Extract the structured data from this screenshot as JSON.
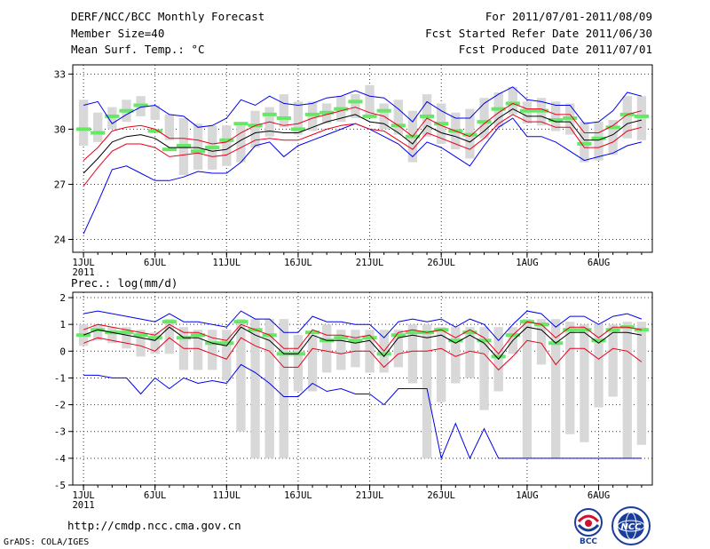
{
  "header": {
    "title": "DERF/NCC/BCC Monthly Forecast",
    "member": "Member Size=40",
    "variable": "Mean Surf. Temp.: °C",
    "period": "For 2011/07/01-2011/08/09",
    "refer": "Fcst Started Refer Date 2011/06/30",
    "produced": "Fcst Produced Date 2011/07/01"
  },
  "footer": {
    "url": "http://cmdp.ncc.cma.gov.cn",
    "credit": "GrADS: COLA/IGES",
    "logo_bcc": "BCC",
    "logo_ncc": "NCC"
  },
  "colors": {
    "box": "#d8d8d8",
    "mean": "#66e866",
    "median": "#000000",
    "inner": "#e8001c",
    "outer": "#0000ee",
    "grid": "#333333"
  },
  "chart_data": [
    {
      "type": "box-line",
      "title": "Mean Surf. Temp.: °C",
      "ylabel": "Mean Surf. Temp. (°C)",
      "ylim": [
        23.3,
        33.5
      ],
      "yticks": [
        24,
        27,
        30,
        33
      ],
      "xtick_days": [
        1,
        6,
        11,
        16,
        21,
        26,
        32,
        37
      ],
      "xtick_labels": [
        "1JUL",
        "6JUL",
        "11JUL",
        "16JUL",
        "21JUL",
        "26JUL",
        "1AUG",
        "6AUG"
      ],
      "year_label": "2011",
      "days": 40,
      "box_low": [
        29.1,
        29.3,
        30.0,
        30.4,
        30.7,
        30.5,
        29.4,
        27.5,
        27.8,
        27.8,
        28.0,
        28.2,
        29.0,
        29.6,
        30.1,
        29.7,
        29.9,
        30.3,
        30.4,
        30.6,
        30.7,
        30.0,
        29.7,
        28.2,
        29.6,
        29.2,
        28.9,
        28.4,
        29.5,
        30.1,
        30.8,
        30.3,
        30.2,
        29.9,
        29.7,
        28.2,
        28.3,
        28.6,
        29.5,
        29.4
      ],
      "box_high": [
        31.6,
        30.9,
        31.2,
        31.6,
        31.8,
        31.3,
        30.8,
        30.6,
        30.3,
        30.2,
        30.2,
        30.2,
        31.0,
        31.2,
        31.9,
        31.5,
        31.5,
        31.4,
        31.8,
        31.9,
        32.4,
        31.4,
        31.6,
        31.0,
        31.9,
        31.4,
        30.9,
        31.1,
        31.7,
        32.0,
        32.3,
        31.5,
        31.7,
        31.5,
        31.4,
        30.4,
        30.4,
        30.5,
        31.8,
        31.8
      ],
      "mean": [
        30.0,
        29.8,
        30.7,
        31.0,
        31.3,
        29.9,
        28.9,
        29.1,
        28.8,
        29.0,
        29.4,
        30.3,
        30.2,
        30.8,
        30.6,
        30.0,
        30.8,
        30.9,
        31.1,
        31.5,
        30.7,
        31.0,
        30.2,
        29.6,
        30.7,
        30.3,
        29.9,
        29.7,
        30.4,
        31.1,
        31.4,
        31.0,
        31.0,
        30.5,
        30.6,
        29.2,
        29.5,
        30.1,
        30.8,
        30.7
      ],
      "series": [
        {
          "name": "max",
          "color": "outer",
          "values": [
            24.3,
            26.0,
            27.8,
            28.0,
            27.6,
            27.2,
            27.2,
            27.4,
            27.7,
            27.6,
            27.6,
            28.2,
            29.1,
            29.3,
            28.5,
            29.1,
            29.4,
            29.7,
            30.0,
            30.3,
            30.0,
            29.6,
            29.2,
            28.5,
            29.3,
            29.0,
            28.5,
            28.0,
            29.1,
            30.1,
            30.6,
            29.6,
            29.6,
            29.3,
            28.8,
            28.3,
            28.5,
            28.7,
            29.1,
            29.3
          ]
        },
        {
          "name": "",
          "color": "inner",
          "values": [
            26.9,
            27.9,
            28.8,
            29.2,
            29.2,
            29.0,
            28.5,
            28.6,
            28.7,
            28.5,
            28.6,
            29.0,
            29.4,
            29.5,
            29.4,
            29.4,
            29.7,
            30.0,
            30.2,
            30.3,
            30.0,
            29.9,
            29.4,
            28.9,
            29.8,
            29.5,
            29.2,
            28.9,
            29.5,
            30.3,
            30.8,
            30.4,
            30.4,
            30.1,
            30.1,
            29.0,
            29.0,
            29.3,
            29.9,
            30.1
          ]
        },
        {
          "name": "",
          "color": "median",
          "values": [
            27.6,
            28.4,
            29.3,
            29.6,
            29.7,
            29.5,
            29.0,
            29.0,
            29.0,
            28.8,
            28.9,
            29.4,
            29.8,
            29.9,
            29.8,
            29.8,
            30.1,
            30.4,
            30.6,
            30.8,
            30.4,
            30.3,
            29.8,
            29.2,
            30.2,
            29.8,
            29.6,
            29.3,
            29.9,
            30.6,
            31.1,
            30.7,
            30.7,
            30.4,
            30.4,
            29.4,
            29.4,
            29.7,
            30.3,
            30.5
          ]
        },
        {
          "name": "",
          "color": "inner",
          "values": [
            28.3,
            29.0,
            29.9,
            30.1,
            30.2,
            30.0,
            29.5,
            29.5,
            29.4,
            29.2,
            29.3,
            29.8,
            30.2,
            30.4,
            30.2,
            30.3,
            30.6,
            30.8,
            31.0,
            31.2,
            30.9,
            30.7,
            30.2,
            29.6,
            30.6,
            30.2,
            29.9,
            29.6,
            30.3,
            30.9,
            31.4,
            31.1,
            31.1,
            30.8,
            30.8,
            29.8,
            29.8,
            30.2,
            30.8,
            31.0
          ]
        },
        {
          "name": "min",
          "color": "outer",
          "values": [
            31.3,
            31.5,
            30.3,
            30.8,
            31.2,
            31.3,
            30.8,
            30.7,
            30.1,
            30.2,
            30.6,
            31.6,
            31.3,
            31.8,
            31.4,
            31.3,
            31.4,
            31.7,
            31.8,
            32.1,
            31.8,
            31.7,
            31.1,
            30.4,
            31.5,
            31.0,
            30.6,
            30.6,
            31.4,
            31.9,
            32.3,
            31.6,
            31.5,
            31.3,
            31.3,
            30.3,
            30.4,
            31.0,
            32.0,
            31.8
          ]
        }
      ]
    },
    {
      "type": "box-line",
      "title": "Prec.: log(mm/d)",
      "ylabel": "Prec. log(mm/d)",
      "ylim": [
        -5,
        2.2
      ],
      "yticks": [
        -5,
        -4,
        -3,
        -2,
        -1,
        0,
        1,
        2
      ],
      "xtick_days": [
        1,
        6,
        11,
        16,
        21,
        26,
        32,
        37
      ],
      "xtick_labels": [
        "1JUL",
        "6JUL",
        "11JUL",
        "16JUL",
        "21JUL",
        "26JUL",
        "1AUG",
        "6AUG"
      ],
      "year_label": "2011",
      "days": 40,
      "box_low": [
        0.2,
        0.4,
        0.3,
        0.1,
        -0.2,
        -0.1,
        -0.1,
        -0.7,
        -0.7,
        -0.7,
        -1.1,
        -3.0,
        -4.0,
        -4.0,
        -4.0,
        -1.5,
        -1.5,
        -0.8,
        -0.7,
        -0.6,
        -0.8,
        -0.8,
        -0.6,
        -1.2,
        -4.0,
        -1.9,
        -1.2,
        -1.0,
        -2.2,
        -1.5,
        -0.1,
        -4.0,
        -0.5,
        -4.0,
        -3.1,
        -3.4,
        -2.1,
        -1.7,
        -4.0,
        -3.5
      ],
      "box_high": [
        1.0,
        1.0,
        0.9,
        0.9,
        0.8,
        0.7,
        1.2,
        0.9,
        0.8,
        0.8,
        0.8,
        1.2,
        1.2,
        1.2,
        1.2,
        0.6,
        0.6,
        1.0,
        0.8,
        0.8,
        0.8,
        0.8,
        0.8,
        1.0,
        1.0,
        0.9,
        0.9,
        0.9,
        0.9,
        0.9,
        0.9,
        1.2,
        1.2,
        1.2,
        1.1,
        1.0,
        1.0,
        1.0,
        1.1,
        1.1
      ],
      "mean": [
        0.6,
        0.8,
        0.7,
        0.7,
        0.6,
        0.5,
        1.1,
        0.5,
        0.6,
        0.3,
        0.3,
        1.1,
        0.8,
        0.6,
        -0.1,
        -0.1,
        0.7,
        0.4,
        0.5,
        0.4,
        0.5,
        -0.1,
        0.6,
        0.7,
        0.7,
        0.8,
        0.4,
        0.7,
        0.4,
        -0.2,
        0.6,
        1.1,
        1.0,
        0.3,
        0.8,
        0.8,
        0.4,
        0.8,
        0.9,
        0.8
      ],
      "series": [
        {
          "name": "max",
          "color": "outer",
          "values": [
            -0.9,
            -0.9,
            -1.0,
            -1.0,
            -1.6,
            -1.0,
            -1.4,
            -1.0,
            -1.2,
            -1.1,
            -1.2,
            -0.5,
            -0.8,
            -1.2,
            -1.7,
            -1.7,
            -1.2,
            -1.5,
            -1.4,
            -1.6,
            -1.6,
            -2.0,
            -1.4,
            -1.4,
            -1.4,
            -4.0,
            -2.7,
            -4.0,
            -2.9,
            -4.0,
            -4.0,
            -4.0,
            -4.0,
            -4.0,
            -4.0,
            -4.0,
            -4.0,
            -4.0,
            -4.0,
            -4.0
          ]
        },
        {
          "name": "",
          "color": "inner",
          "values": [
            0.3,
            0.5,
            0.4,
            0.3,
            0.2,
            0.0,
            0.5,
            0.1,
            0.1,
            -0.1,
            -0.3,
            0.5,
            0.2,
            0.0,
            -0.6,
            -0.6,
            0.1,
            0.0,
            -0.1,
            0.0,
            0.0,
            -0.6,
            -0.1,
            0.0,
            0.0,
            0.1,
            -0.2,
            0.0,
            -0.1,
            -0.7,
            -0.2,
            0.4,
            0.3,
            -0.5,
            0.1,
            0.1,
            -0.3,
            0.1,
            0.0,
            -0.4
          ]
        },
        {
          "name": "",
          "color": "median",
          "values": [
            0.6,
            0.8,
            0.7,
            0.6,
            0.5,
            0.4,
            0.9,
            0.5,
            0.5,
            0.3,
            0.2,
            0.9,
            0.6,
            0.4,
            -0.1,
            -0.1,
            0.6,
            0.4,
            0.4,
            0.3,
            0.4,
            -0.2,
            0.5,
            0.6,
            0.5,
            0.6,
            0.3,
            0.6,
            0.3,
            -0.3,
            0.4,
            0.9,
            0.8,
            0.3,
            0.7,
            0.7,
            0.3,
            0.7,
            0.7,
            0.6
          ]
        },
        {
          "name": "",
          "color": "inner",
          "values": [
            0.8,
            1.0,
            0.9,
            0.8,
            0.7,
            0.6,
            1.0,
            0.7,
            0.7,
            0.5,
            0.4,
            1.0,
            0.8,
            0.6,
            0.1,
            0.1,
            0.8,
            0.6,
            0.6,
            0.5,
            0.6,
            0.0,
            0.7,
            0.8,
            0.7,
            0.8,
            0.5,
            0.8,
            0.5,
            -0.1,
            0.6,
            1.1,
            1.0,
            0.5,
            0.9,
            0.9,
            0.5,
            0.9,
            0.9,
            0.8
          ]
        },
        {
          "name": "min",
          "color": "outer",
          "values": [
            1.4,
            1.5,
            1.4,
            1.3,
            1.2,
            1.1,
            1.4,
            1.1,
            1.1,
            1.0,
            0.9,
            1.5,
            1.2,
            1.2,
            0.7,
            0.7,
            1.3,
            1.1,
            1.1,
            1.0,
            1.0,
            0.5,
            1.1,
            1.2,
            1.1,
            1.2,
            0.9,
            1.2,
            1.0,
            0.4,
            1.0,
            1.5,
            1.4,
            0.9,
            1.3,
            1.3,
            1.0,
            1.3,
            1.4,
            1.2
          ]
        }
      ]
    }
  ]
}
